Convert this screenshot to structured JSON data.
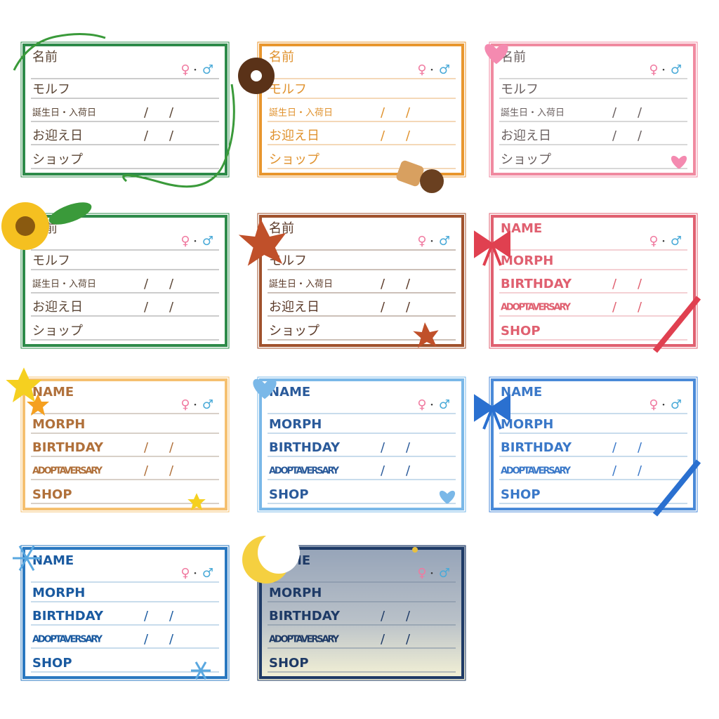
{
  "cards": [
    {
      "labels": [
        "名前",
        "モルフ",
        "誕生日・入荷日",
        "お迎え日",
        "ショップ"
      ],
      "female": "♀",
      "dot": "・",
      "male": "♂",
      "slash": "/"
    },
    {
      "labels": [
        "名前",
        "モルフ",
        "誕生日・入荷日",
        "お迎え日",
        "ショップ"
      ],
      "female": "♀",
      "dot": "・",
      "male": "♂",
      "slash": "/"
    },
    {
      "labels": [
        "名前",
        "モルフ",
        "誕生日・入荷日",
        "お迎え日",
        "ショップ"
      ],
      "female": "♀",
      "dot": "・",
      "male": "♂",
      "slash": "/"
    },
    {
      "labels": [
        "名前",
        "モルフ",
        "誕生日・入荷日",
        "お迎え日",
        "ショップ"
      ],
      "female": "♀",
      "dot": "・",
      "male": "♂",
      "slash": "/"
    },
    {
      "labels": [
        "名前",
        "モルフ",
        "誕生日・入荷日",
        "お迎え日",
        "ショップ"
      ],
      "female": "♀",
      "dot": "・",
      "male": "♂",
      "slash": "/"
    },
    {
      "labels": [
        "NAME",
        "MORPH",
        "BIRTHDAY",
        "ADOPTAVERSARY",
        "SHOP"
      ],
      "female": "♀",
      "dot": "・",
      "male": "♂",
      "slash": "/"
    },
    {
      "labels": [
        "NAME",
        "MORPH",
        "BIRTHDAY",
        "ADOPTAVERSARY",
        "SHOP"
      ],
      "female": "♀",
      "dot": "・",
      "male": "♂",
      "slash": "/"
    },
    {
      "labels": [
        "NAME",
        "MORPH",
        "BIRTHDAY",
        "ADOPTAVERSARY",
        "SHOP"
      ],
      "female": "♀",
      "dot": "・",
      "male": "♂",
      "slash": "/"
    },
    {
      "labels": [
        "NAME",
        "MORPH",
        "BIRTHDAY",
        "ADOPTAVERSARY",
        "SHOP"
      ],
      "female": "♀",
      "dot": "・",
      "male": "♂",
      "slash": "/"
    },
    {
      "labels": [
        "NAME",
        "MORPH",
        "BIRTHDAY",
        "ADOPTAVERSARY",
        "SHOP"
      ],
      "female": "♀",
      "dot": "・",
      "male": "♂",
      "slash": "/"
    },
    {
      "labels": [
        "NAME",
        "MORPH",
        "BIRTHDAY",
        "ADOPTAVERSARY",
        "SHOP"
      ],
      "female": "♀",
      "dot": "・",
      "male": "♂",
      "slash": "/"
    }
  ]
}
